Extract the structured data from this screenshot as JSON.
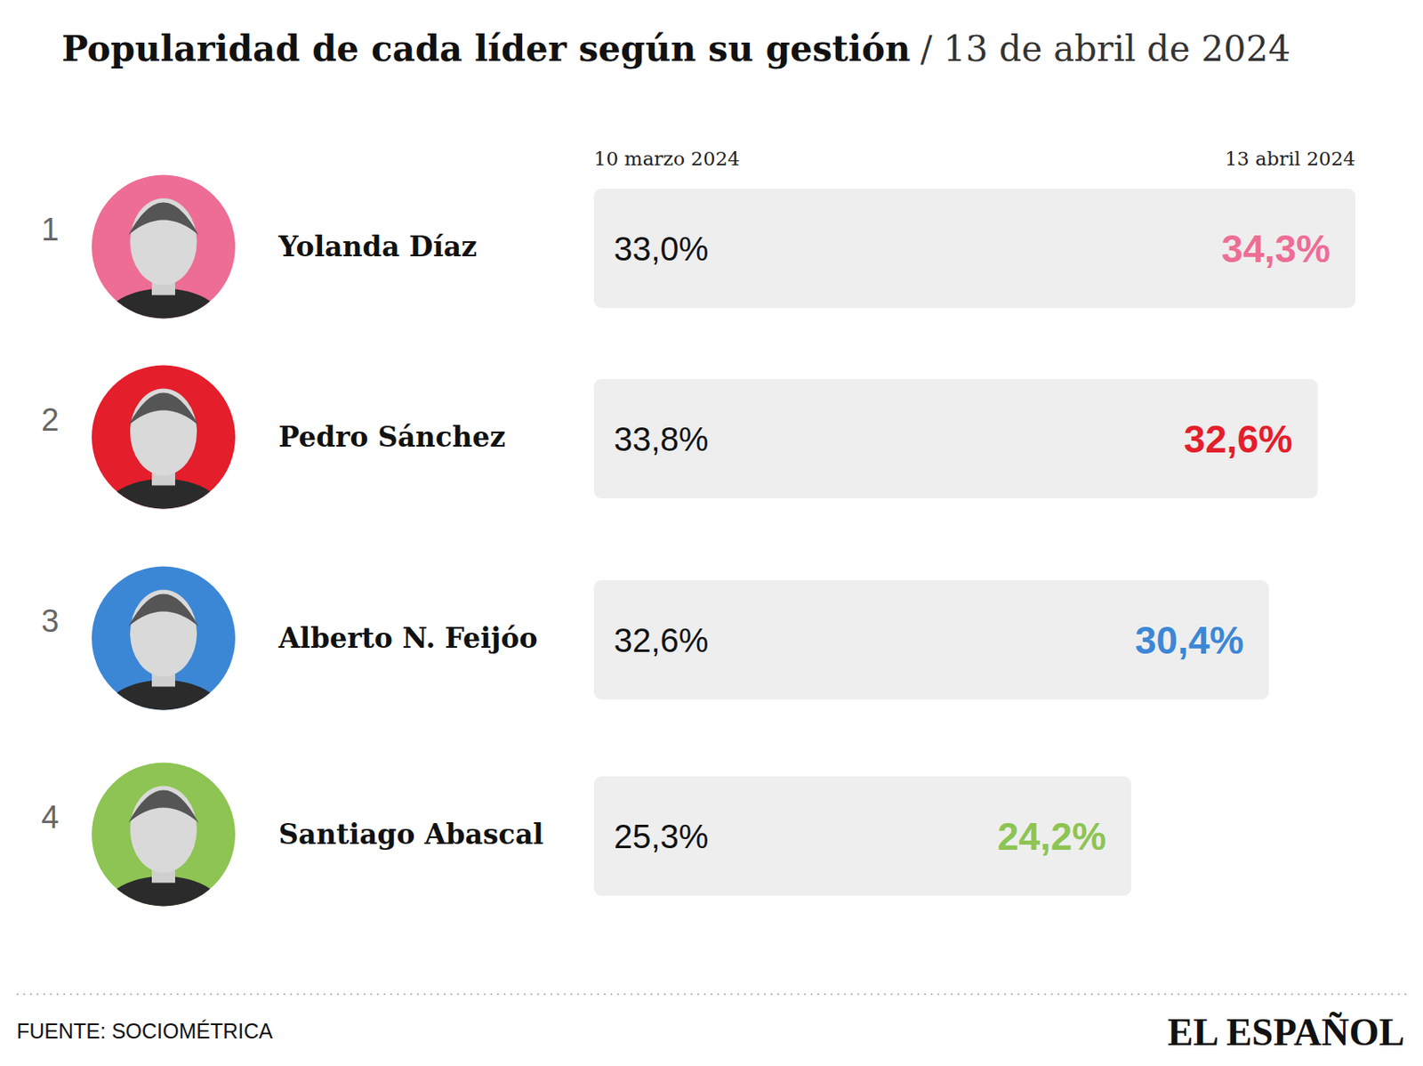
{
  "chart_data": {
    "type": "bar",
    "orientation": "horizontal",
    "title": "Popularidad de cada líder según su gestión",
    "subtitle": "/ 13 de abril de 2024",
    "ranks": [
      1,
      2,
      3,
      4
    ],
    "categories": [
      "Yolanda Díaz",
      "Pedro Sánchez",
      "Alberto N. Feijóo",
      "Santiago Abascal"
    ],
    "series": [
      {
        "name": "10 marzo 2024",
        "values": [
          33.0,
          33.8,
          32.6,
          25.3
        ],
        "value_labels": [
          "33,0%",
          "33,8%",
          "32,6%",
          "25,3%"
        ],
        "color": "#111111"
      },
      {
        "name": "13 abril 2024",
        "values": [
          34.3,
          32.6,
          30.4,
          24.2
        ],
        "value_labels": [
          "34,3%",
          "32,6%",
          "30,4%",
          "24,2%"
        ],
        "colors": [
          "#ee6d95",
          "#e41e2b",
          "#3b87d6",
          "#8dc453"
        ]
      }
    ],
    "xlim": [
      0,
      34.3
    ],
    "tick_labels": false,
    "data_labels": true,
    "source": "FUENTE: SOCIOMÉTRICA",
    "logo": "EL ESPAÑOL"
  }
}
